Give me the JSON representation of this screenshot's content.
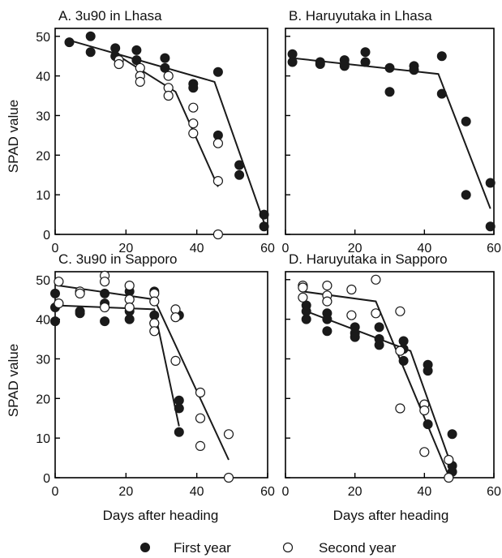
{
  "figure": {
    "ylabel": "SPAD value",
    "xlabel": "Days after heading",
    "legend": [
      {
        "label": "First year",
        "marker": "filled-circle"
      },
      {
        "label": "Second year",
        "marker": "open-circle"
      }
    ]
  },
  "chart_data": [
    {
      "type": "scatter",
      "title": "A. 3u90 in Lhasa",
      "xlabel": "",
      "ylabel": "SPAD value",
      "xlim": [
        0,
        60
      ],
      "ylim": [
        0,
        52
      ],
      "xticks": [
        0,
        20,
        40,
        60
      ],
      "yticks": [
        0,
        10,
        20,
        30,
        40,
        50
      ],
      "series": [
        {
          "name": "First year",
          "points": [
            [
              4,
              48.5
            ],
            [
              10,
              50
            ],
            [
              10,
              46
            ],
            [
              17,
              47
            ],
            [
              17,
              45
            ],
            [
              23,
              46.5
            ],
            [
              23,
              44
            ],
            [
              31,
              44.5
            ],
            [
              31,
              42
            ],
            [
              39,
              38
            ],
            [
              39,
              37
            ],
            [
              46,
              41
            ],
            [
              46,
              25
            ],
            [
              52,
              17.5
            ],
            [
              52,
              15
            ],
            [
              59,
              5
            ],
            [
              59,
              2
            ]
          ],
          "fit": [
            [
              4,
              49
            ],
            [
              45,
              38.5
            ],
            [
              59,
              3
            ]
          ]
        },
        {
          "name": "Second year",
          "points": [
            [
              18,
              44
            ],
            [
              18,
              43
            ],
            [
              24,
              42
            ],
            [
              24,
              40
            ],
            [
              24,
              38.5
            ],
            [
              32,
              40
            ],
            [
              32,
              37
            ],
            [
              32,
              35
            ],
            [
              39,
              32
            ],
            [
              39,
              28
            ],
            [
              39,
              25.5
            ],
            [
              46,
              23
            ],
            [
              46,
              13.5
            ],
            [
              46,
              0
            ]
          ],
          "fit": [
            [
              18,
              45
            ],
            [
              34,
              36
            ],
            [
              46,
              12
            ]
          ]
        }
      ]
    },
    {
      "type": "scatter",
      "title": "B. Haruyutaka in Lhasa",
      "xlabel": "",
      "ylabel": "",
      "xlim": [
        0,
        60
      ],
      "ylim": [
        0,
        52
      ],
      "xticks": [
        0,
        20,
        40,
        60
      ],
      "yticks": [
        0,
        10,
        20,
        30,
        40,
        50
      ],
      "series": [
        {
          "name": "First year",
          "points": [
            [
              2,
              45.5
            ],
            [
              2,
              43.5
            ],
            [
              10,
              43.5
            ],
            [
              10,
              43
            ],
            [
              17,
              44
            ],
            [
              17,
              43
            ],
            [
              17,
              42.5
            ],
            [
              23,
              46
            ],
            [
              23,
              43.5
            ],
            [
              30,
              42
            ],
            [
              30,
              36
            ],
            [
              37,
              42.5
            ],
            [
              37,
              41.5
            ],
            [
              45,
              45
            ],
            [
              45,
              35.5
            ],
            [
              52,
              28.5
            ],
            [
              52,
              10
            ],
            [
              59,
              13
            ],
            [
              59,
              2
            ]
          ],
          "fit": [
            [
              2,
              44.5
            ],
            [
              44,
              40.5
            ],
            [
              59,
              6.5
            ]
          ]
        }
      ]
    },
    {
      "type": "scatter",
      "title": "C. 3u90 in Sapporo",
      "xlabel": "Days after heading",
      "ylabel": "SPAD value",
      "xlim": [
        0,
        60
      ],
      "ylim": [
        0,
        52
      ],
      "xticks": [
        0,
        20,
        40,
        60
      ],
      "yticks": [
        0,
        10,
        20,
        30,
        40,
        50
      ],
      "series": [
        {
          "name": "First year",
          "points": [
            [
              0,
              46.5
            ],
            [
              0,
              43
            ],
            [
              0,
              39.5
            ],
            [
              7,
              42
            ],
            [
              7,
              41.5
            ],
            [
              14,
              46.5
            ],
            [
              14,
              44
            ],
            [
              14,
              39.5
            ],
            [
              21,
              47
            ],
            [
              21,
              42
            ],
            [
              21,
              40
            ],
            [
              28,
              47
            ],
            [
              28,
              41
            ],
            [
              28,
              39
            ],
            [
              35,
              41
            ],
            [
              35,
              19.5
            ],
            [
              35,
              17.5
            ],
            [
              35,
              11.5
            ]
          ],
          "fit": [
            [
              0,
              43.5
            ],
            [
              28,
              42.5
            ],
            [
              35,
              13
            ]
          ]
        },
        {
          "name": "Second year",
          "points": [
            [
              1,
              49.5
            ],
            [
              1,
              44
            ],
            [
              7,
              47
            ],
            [
              7,
              46.5
            ],
            [
              14,
              51
            ],
            [
              14,
              49.5
            ],
            [
              14,
              43
            ],
            [
              21,
              48.5
            ],
            [
              21,
              45
            ],
            [
              21,
              43
            ],
            [
              28,
              46.5
            ],
            [
              28,
              44.5
            ],
            [
              28,
              39
            ],
            [
              28,
              37
            ],
            [
              34,
              42.5
            ],
            [
              34,
              40.5
            ],
            [
              34,
              29.5
            ],
            [
              41,
              21.5
            ],
            [
              41,
              15
            ],
            [
              41,
              8
            ],
            [
              49,
              11
            ],
            [
              49,
              0
            ]
          ],
          "fit": [
            [
              1,
              48.5
            ],
            [
              28,
              45
            ],
            [
              49,
              4.5
            ]
          ]
        }
      ]
    },
    {
      "type": "scatter",
      "title": "D. Haruyutaka in Sapporo",
      "xlabel": "Days after heading",
      "ylabel": "",
      "xlim": [
        0,
        60
      ],
      "ylim": [
        0,
        52
      ],
      "xticks": [
        0,
        20,
        40,
        60
      ],
      "yticks": [
        0,
        10,
        20,
        30,
        40,
        50
      ],
      "series": [
        {
          "name": "First year",
          "points": [
            [
              6,
              43.5
            ],
            [
              6,
              42
            ],
            [
              6,
              40
            ],
            [
              12,
              41.5
            ],
            [
              12,
              40
            ],
            [
              12,
              37
            ],
            [
              20,
              38
            ],
            [
              20,
              36.5
            ],
            [
              20,
              35.5
            ],
            [
              27,
              38
            ],
            [
              27,
              35
            ],
            [
              27,
              33.5
            ],
            [
              34,
              34.5
            ],
            [
              34,
              32.5
            ],
            [
              34,
              29.5
            ],
            [
              41,
              28.5
            ],
            [
              41,
              27
            ],
            [
              41,
              13.5
            ],
            [
              48,
              11
            ],
            [
              48,
              3
            ],
            [
              48,
              1.5
            ]
          ],
          "fit": [
            [
              6,
              42
            ],
            [
              36,
              32
            ],
            [
              48,
              2.5
            ]
          ]
        },
        {
          "name": "Second year",
          "points": [
            [
              5,
              48.5
            ],
            [
              5,
              48
            ],
            [
              5,
              45.5
            ],
            [
              12,
              48.5
            ],
            [
              12,
              46
            ],
            [
              12,
              44.5
            ],
            [
              19,
              47.5
            ],
            [
              19,
              41
            ],
            [
              26,
              50
            ],
            [
              26,
              41.5
            ],
            [
              33,
              42
            ],
            [
              33,
              32
            ],
            [
              33,
              17.5
            ],
            [
              40,
              18.5
            ],
            [
              40,
              17
            ],
            [
              40,
              6.5
            ],
            [
              47,
              4.5
            ],
            [
              47,
              0
            ]
          ],
          "fit": [
            [
              5,
              47
            ],
            [
              26,
              44.5
            ],
            [
              47,
              0.5
            ]
          ]
        }
      ]
    }
  ]
}
